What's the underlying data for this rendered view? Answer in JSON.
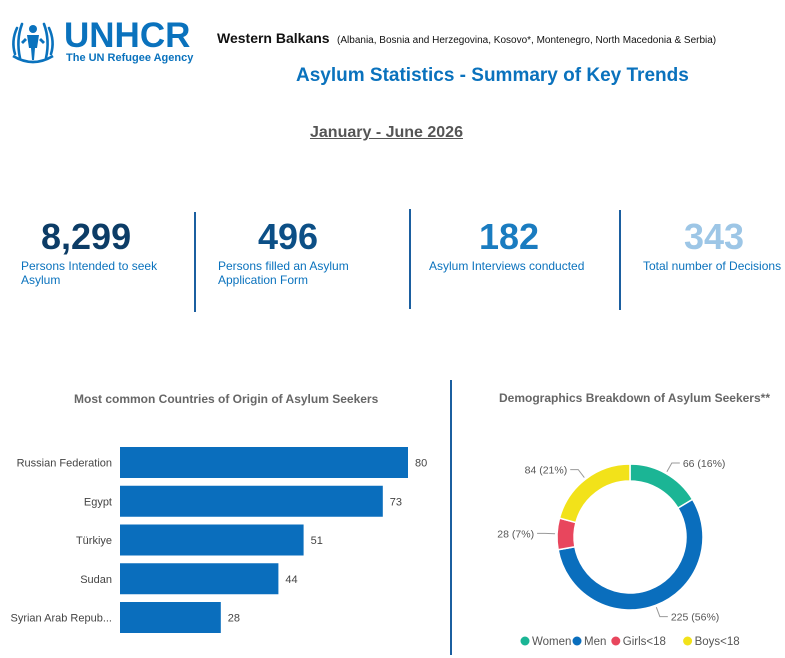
{
  "logo": {
    "word": "UNHCR",
    "tagline": "The UN Refugee Agency",
    "color": "#0a72bd"
  },
  "header": {
    "region": "Western Balkans",
    "region_detail": "(Albania, Bosnia and Herzegovina,  Kosovo*, Montenegro, North Macedonia & Serbia)",
    "title": "Asylum Statistics - Summary of Key Trends",
    "period": "January - June 2026"
  },
  "kpis": [
    {
      "value": "8,299",
      "label": "Persons Intended to seek Asylum",
      "color": "#0c3c66"
    },
    {
      "value": "496",
      "label": "Persons filled an Asylum Application Form",
      "color": "#0c4f86"
    },
    {
      "value": "182",
      "label": "Asylum Interviews conducted",
      "color": "#1a7cc0"
    },
    {
      "value": "343",
      "label": "Total number of Decisions",
      "color": "#9dc6e6"
    }
  ],
  "chart_data": [
    {
      "type": "bar",
      "orientation": "horizontal",
      "title": "Most common Countries of Origin of Asylum Seekers",
      "categories": [
        "Russian Federation",
        "Egypt",
        "Türkiye",
        "Sudan",
        "Syrian Arab Repub..."
      ],
      "values": [
        80,
        73,
        51,
        44,
        28
      ],
      "color": "#0a6ebd"
    },
    {
      "type": "pie",
      "variant": "donut",
      "title": "Demographics Breakdown of Asylum Seekers**",
      "categories": [
        "Women",
        "Men",
        "Girls<18",
        "Boys<18"
      ],
      "values": [
        66,
        225,
        28,
        84
      ],
      "data_labels": [
        "66 (16%)",
        "225 (56%)",
        "28 (7%)",
        "84 (21%)"
      ],
      "colors": [
        "#1bb595",
        "#0a6ebd",
        "#e8465d",
        "#f2e21a"
      ],
      "legend": "bottom"
    }
  ]
}
